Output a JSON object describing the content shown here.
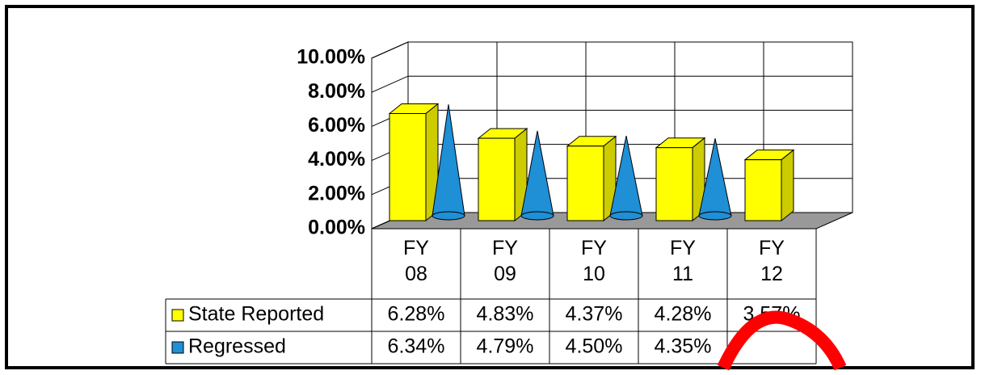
{
  "chart_data": {
    "type": "bar",
    "categories": [
      "FY 08",
      "FY 09",
      "FY 10",
      "FY 11",
      "FY 12"
    ],
    "series": [
      {
        "name": "State Reported",
        "color": "#ffff00",
        "values": [
          6.28,
          4.83,
          4.37,
          4.28,
          3.57
        ],
        "value_labels": [
          "6.28%",
          "4.83%",
          "4.37%",
          "4.28%",
          "3.57%"
        ]
      },
      {
        "name": "Regressed",
        "color": "#1f8fd6",
        "values": [
          6.34,
          4.79,
          4.5,
          4.35,
          null
        ],
        "value_labels": [
          "6.34%",
          "4.79%",
          "4.50%",
          "4.35%",
          null
        ]
      }
    ],
    "ylim": [
      0,
      10
    ],
    "yticks": [
      {
        "value": 0,
        "label": "0.00%"
      },
      {
        "value": 2,
        "label": "2.00%"
      },
      {
        "value": 4,
        "label": "4.00%"
      },
      {
        "value": 6,
        "label": "6.00%"
      },
      {
        "value": 8,
        "label": "8.00%"
      },
      {
        "value": 10,
        "label": "10.00%"
      }
    ],
    "grid": true
  }
}
